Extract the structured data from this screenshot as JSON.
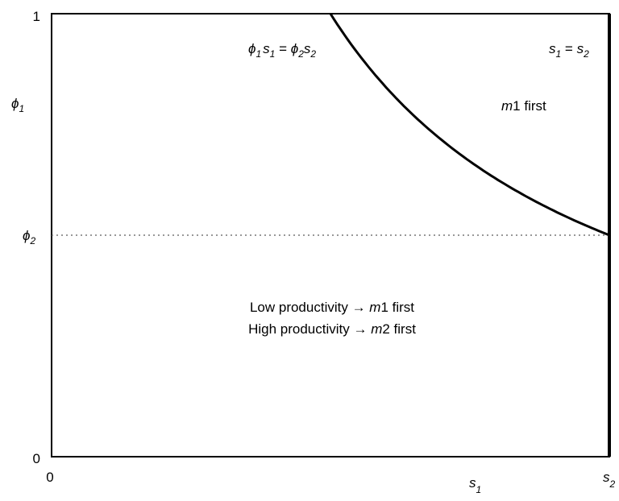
{
  "diagram": {
    "y_ticks": {
      "top": "1",
      "bottom": "0"
    },
    "x_ticks": {
      "left": "0"
    },
    "axis_labels": {
      "y_symbol": "ϕ",
      "y_sub": "1",
      "x_symbol": "s",
      "x_sub": "1",
      "s2_symbol": "s",
      "s2_sub": "2",
      "phi2_symbol": "ϕ",
      "phi2_sub": "2"
    },
    "curve_label": {
      "phi": "ϕ",
      "sub1": "1",
      "s": "s",
      "sub1b": "1",
      "eq": " = ",
      "phi2": "ϕ",
      "sub2": "2",
      "s2": "s",
      "sub2b": "2"
    },
    "line_label": {
      "s": "s",
      "sub1": "1",
      "eq": " = ",
      "s2": "s",
      "sub2": "2"
    },
    "region_top": {
      "m": "m",
      "rest": "1 first"
    },
    "region_bottom": {
      "line1_text": "Low productivity → ",
      "line1_m": "m",
      "line1_rest": "1 first",
      "line2_text": "High productivity → ",
      "line2_m": "m",
      "line2_rest": "2 first"
    },
    "model": {
      "phi2": 0.5,
      "s_ratio_at_top": 0.5
    }
  }
}
